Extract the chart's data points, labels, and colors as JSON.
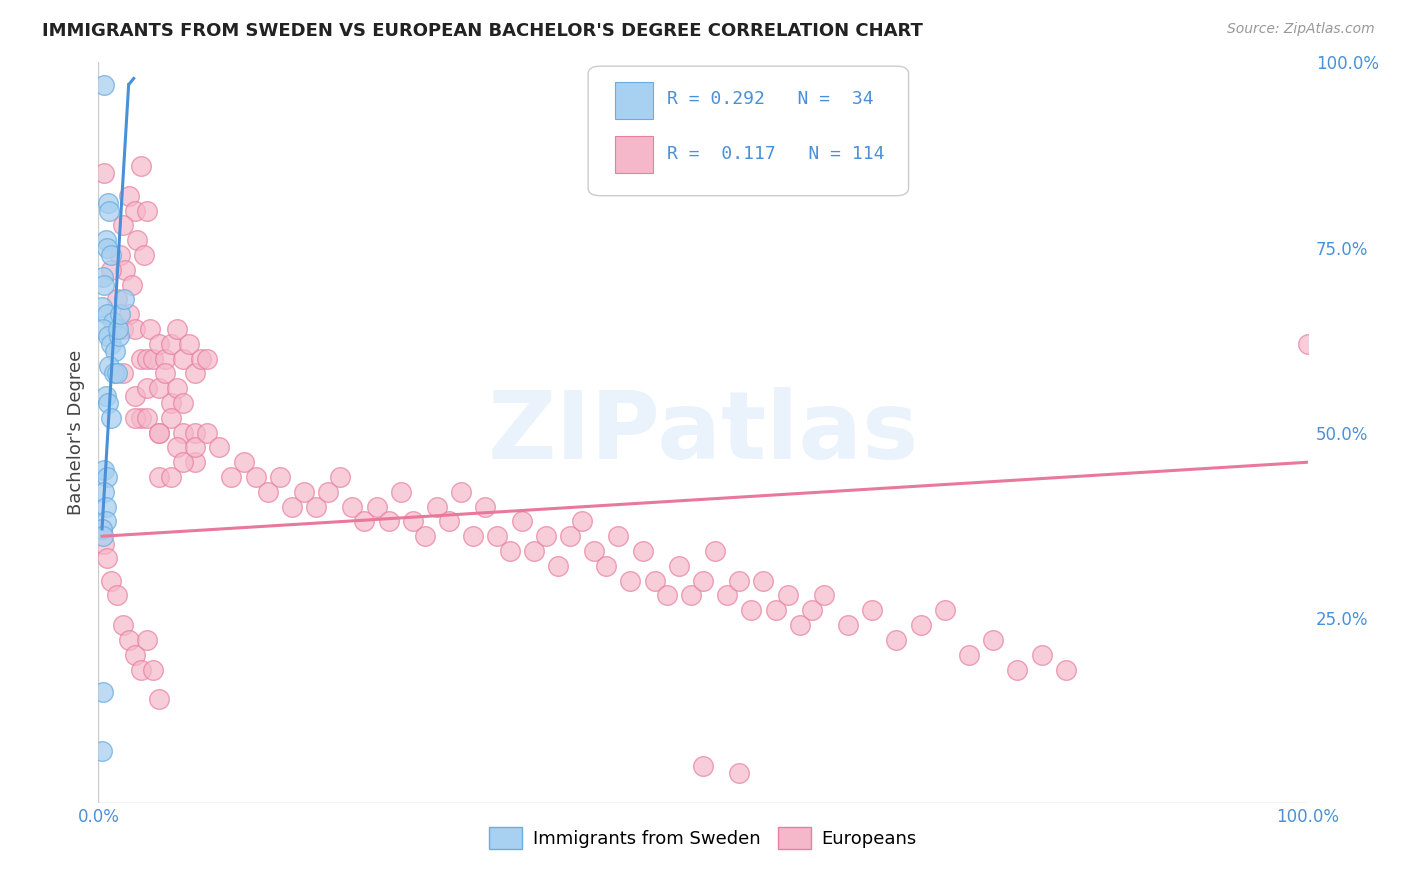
{
  "title": "IMMIGRANTS FROM SWEDEN VS EUROPEAN BACHELOR'S DEGREE CORRELATION CHART",
  "source": "Source: ZipAtlas.com",
  "ylabel": "Bachelor's Degree",
  "xlim": [
    0,
    1
  ],
  "ylim": [
    0,
    1
  ],
  "blue_color": "#a8d0f0",
  "pink_color": "#f5b8cb",
  "blue_edge_color": "#6aaee0",
  "pink_edge_color": "#e87fa0",
  "blue_line_color": "#4a90d9",
  "pink_line_color": "#e8799a",
  "watermark": "ZIPatlas",
  "background_color": "#ffffff",
  "grid_color": "#d8d8d8",
  "blue_scatter": [
    [
      0.005,
      0.97
    ],
    [
      0.008,
      0.81
    ],
    [
      0.009,
      0.8
    ],
    [
      0.006,
      0.76
    ],
    [
      0.007,
      0.75
    ],
    [
      0.01,
      0.74
    ],
    [
      0.004,
      0.71
    ],
    [
      0.005,
      0.7
    ],
    [
      0.003,
      0.67
    ],
    [
      0.007,
      0.66
    ],
    [
      0.012,
      0.65
    ],
    [
      0.004,
      0.64
    ],
    [
      0.008,
      0.63
    ],
    [
      0.01,
      0.62
    ],
    [
      0.014,
      0.61
    ],
    [
      0.009,
      0.59
    ],
    [
      0.013,
      0.58
    ],
    [
      0.015,
      0.58
    ],
    [
      0.017,
      0.63
    ],
    [
      0.016,
      0.64
    ],
    [
      0.018,
      0.66
    ],
    [
      0.021,
      0.68
    ],
    [
      0.006,
      0.55
    ],
    [
      0.008,
      0.54
    ],
    [
      0.01,
      0.52
    ],
    [
      0.005,
      0.45
    ],
    [
      0.007,
      0.44
    ],
    [
      0.005,
      0.42
    ],
    [
      0.006,
      0.4
    ],
    [
      0.006,
      0.38
    ],
    [
      0.003,
      0.37
    ],
    [
      0.004,
      0.36
    ],
    [
      0.004,
      0.15
    ],
    [
      0.003,
      0.07
    ]
  ],
  "pink_scatter": [
    [
      0.005,
      0.85
    ],
    [
      0.025,
      0.82
    ],
    [
      0.03,
      0.8
    ],
    [
      0.02,
      0.78
    ],
    [
      0.018,
      0.74
    ],
    [
      0.022,
      0.72
    ],
    [
      0.028,
      0.7
    ],
    [
      0.032,
      0.76
    ],
    [
      0.038,
      0.74
    ],
    [
      0.035,
      0.86
    ],
    [
      0.04,
      0.8
    ],
    [
      0.01,
      0.72
    ],
    [
      0.015,
      0.68
    ],
    [
      0.02,
      0.64
    ],
    [
      0.025,
      0.66
    ],
    [
      0.03,
      0.64
    ],
    [
      0.035,
      0.6
    ],
    [
      0.04,
      0.6
    ],
    [
      0.043,
      0.64
    ],
    [
      0.045,
      0.6
    ],
    [
      0.05,
      0.62
    ],
    [
      0.055,
      0.6
    ],
    [
      0.06,
      0.62
    ],
    [
      0.065,
      0.64
    ],
    [
      0.07,
      0.6
    ],
    [
      0.075,
      0.62
    ],
    [
      0.08,
      0.58
    ],
    [
      0.085,
      0.6
    ],
    [
      0.09,
      0.6
    ],
    [
      0.02,
      0.58
    ],
    [
      0.03,
      0.55
    ],
    [
      0.04,
      0.56
    ],
    [
      0.05,
      0.56
    ],
    [
      0.055,
      0.58
    ],
    [
      0.06,
      0.54
    ],
    [
      0.065,
      0.56
    ],
    [
      0.07,
      0.54
    ],
    [
      0.035,
      0.52
    ],
    [
      0.03,
      0.52
    ],
    [
      0.05,
      0.5
    ],
    [
      0.04,
      0.52
    ],
    [
      0.06,
      0.52
    ],
    [
      0.05,
      0.5
    ],
    [
      0.07,
      0.5
    ],
    [
      0.08,
      0.5
    ],
    [
      0.065,
      0.48
    ],
    [
      0.08,
      0.46
    ],
    [
      0.05,
      0.44
    ],
    [
      0.06,
      0.44
    ],
    [
      0.07,
      0.46
    ],
    [
      0.08,
      0.48
    ],
    [
      0.09,
      0.5
    ],
    [
      0.1,
      0.48
    ],
    [
      0.11,
      0.44
    ],
    [
      0.12,
      0.46
    ],
    [
      0.13,
      0.44
    ],
    [
      0.14,
      0.42
    ],
    [
      0.15,
      0.44
    ],
    [
      0.16,
      0.4
    ],
    [
      0.17,
      0.42
    ],
    [
      0.18,
      0.4
    ],
    [
      0.19,
      0.42
    ],
    [
      0.2,
      0.44
    ],
    [
      0.21,
      0.4
    ],
    [
      0.22,
      0.38
    ],
    [
      0.23,
      0.4
    ],
    [
      0.24,
      0.38
    ],
    [
      0.25,
      0.42
    ],
    [
      0.26,
      0.38
    ],
    [
      0.27,
      0.36
    ],
    [
      0.28,
      0.4
    ],
    [
      0.29,
      0.38
    ],
    [
      0.3,
      0.42
    ],
    [
      0.31,
      0.36
    ],
    [
      0.32,
      0.4
    ],
    [
      0.33,
      0.36
    ],
    [
      0.34,
      0.34
    ],
    [
      0.35,
      0.38
    ],
    [
      0.36,
      0.34
    ],
    [
      0.37,
      0.36
    ],
    [
      0.38,
      0.32
    ],
    [
      0.39,
      0.36
    ],
    [
      0.4,
      0.38
    ],
    [
      0.41,
      0.34
    ],
    [
      0.42,
      0.32
    ],
    [
      0.43,
      0.36
    ],
    [
      0.44,
      0.3
    ],
    [
      0.45,
      0.34
    ],
    [
      0.46,
      0.3
    ],
    [
      0.47,
      0.28
    ],
    [
      0.48,
      0.32
    ],
    [
      0.49,
      0.28
    ],
    [
      0.5,
      0.3
    ],
    [
      0.51,
      0.34
    ],
    [
      0.52,
      0.28
    ],
    [
      0.53,
      0.3
    ],
    [
      0.54,
      0.26
    ],
    [
      0.55,
      0.3
    ],
    [
      0.56,
      0.26
    ],
    [
      0.57,
      0.28
    ],
    [
      0.58,
      0.24
    ],
    [
      0.59,
      0.26
    ],
    [
      0.6,
      0.28
    ],
    [
      0.62,
      0.24
    ],
    [
      0.64,
      0.26
    ],
    [
      0.66,
      0.22
    ],
    [
      0.68,
      0.24
    ],
    [
      0.7,
      0.26
    ],
    [
      0.72,
      0.2
    ],
    [
      0.74,
      0.22
    ],
    [
      0.76,
      0.18
    ],
    [
      0.78,
      0.2
    ],
    [
      0.8,
      0.18
    ],
    [
      0.003,
      0.37
    ],
    [
      0.005,
      0.35
    ],
    [
      0.007,
      0.33
    ],
    [
      0.01,
      0.3
    ],
    [
      0.015,
      0.28
    ],
    [
      0.02,
      0.24
    ],
    [
      0.025,
      0.22
    ],
    [
      0.03,
      0.2
    ],
    [
      0.035,
      0.18
    ],
    [
      0.04,
      0.22
    ],
    [
      0.045,
      0.18
    ],
    [
      0.05,
      0.14
    ],
    [
      0.5,
      0.05
    ],
    [
      0.53,
      0.04
    ],
    [
      1.0,
      0.62
    ]
  ],
  "blue_trendline": [
    [
      0.003,
      0.37
    ],
    [
      0.025,
      0.97
    ]
  ],
  "pink_trendline": [
    [
      0.003,
      0.36
    ],
    [
      1.0,
      0.46
    ]
  ]
}
